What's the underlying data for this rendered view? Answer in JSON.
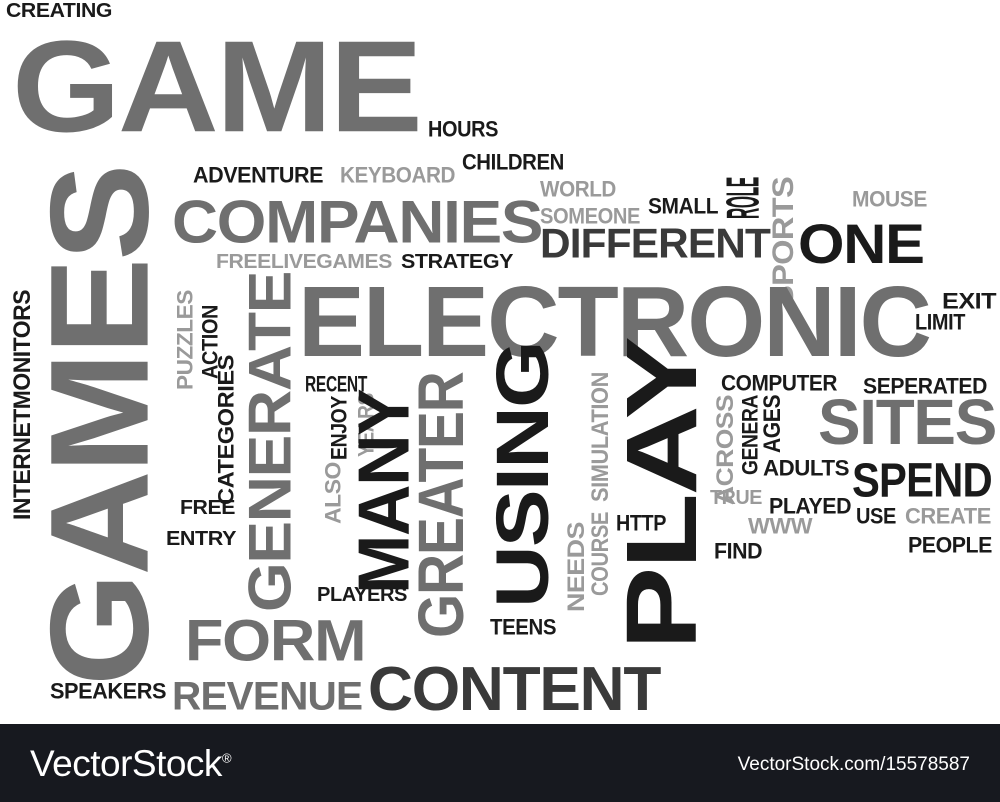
{
  "colors": {
    "black": "#1a1a1a",
    "dark": "#3a3a3a",
    "mid": "#6f6f6f",
    "light": "#9a9a9a",
    "footer": "#17191f"
  },
  "footer": {
    "brand": "VectorStock",
    "trademark": "®",
    "credit": "VectorStock.com/15578587"
  },
  "words": [
    {
      "t": "CREATING",
      "c": "black"
    },
    {
      "t": "GAME",
      "c": "mid"
    },
    {
      "t": "HOURS",
      "c": "black"
    },
    {
      "t": "CHILDREN",
      "c": "black"
    },
    {
      "t": "ADVENTURE",
      "c": "black"
    },
    {
      "t": "KEYBOARD",
      "c": "light"
    },
    {
      "t": "WORLD",
      "c": "light"
    },
    {
      "t": "SOMEONE",
      "c": "light"
    },
    {
      "t": "SMALL",
      "c": "black"
    },
    {
      "t": "ROLE",
      "c": "black"
    },
    {
      "t": "MOUSE",
      "c": "light"
    },
    {
      "t": "SPORTS",
      "c": "light"
    },
    {
      "t": "GAMES",
      "c": "mid"
    },
    {
      "t": "COMPANIES",
      "c": "mid"
    },
    {
      "t": "DIFFERENT",
      "c": "dark"
    },
    {
      "t": "ONE",
      "c": "black"
    },
    {
      "t": "FREELIVEGAMES",
      "c": "light"
    },
    {
      "t": "STRATEGY",
      "c": "black"
    },
    {
      "t": "ELECTRONIC",
      "c": "mid"
    },
    {
      "t": "EXIT",
      "c": "black"
    },
    {
      "t": "LIMIT",
      "c": "black"
    },
    {
      "t": "INTERNETMONITORS",
      "c": "black"
    },
    {
      "t": "PUZZLES",
      "c": "light"
    },
    {
      "t": "ACTION",
      "c": "black"
    },
    {
      "t": "CATEGORIES",
      "c": "black"
    },
    {
      "t": "GENERATE",
      "c": "mid"
    },
    {
      "t": "RECENT",
      "c": "black"
    },
    {
      "t": "ENJOY",
      "c": "black"
    },
    {
      "t": "YEARS",
      "c": "light"
    },
    {
      "t": "ALSO",
      "c": "light"
    },
    {
      "t": "MANY",
      "c": "black"
    },
    {
      "t": "GREATER",
      "c": "mid"
    },
    {
      "t": "USING",
      "c": "black"
    },
    {
      "t": "PLAY",
      "c": "black"
    },
    {
      "t": "SIMULATION",
      "c": "light"
    },
    {
      "t": "NEEDS",
      "c": "light"
    },
    {
      "t": "COURSE",
      "c": "light"
    },
    {
      "t": "COMPUTER",
      "c": "black"
    },
    {
      "t": "SEPERATED",
      "c": "black"
    },
    {
      "t": "ACROSS",
      "c": "light"
    },
    {
      "t": "GENERA",
      "c": "black"
    },
    {
      "t": "AGES",
      "c": "black"
    },
    {
      "t": "SITES",
      "c": "mid"
    },
    {
      "t": "ADULTS",
      "c": "black"
    },
    {
      "t": "SPEND",
      "c": "black"
    },
    {
      "t": "TRUE",
      "c": "light"
    },
    {
      "t": "PLAYED",
      "c": "black"
    },
    {
      "t": "USE",
      "c": "black"
    },
    {
      "t": "CREATE",
      "c": "light"
    },
    {
      "t": "FREE",
      "c": "black"
    },
    {
      "t": "ENTRY",
      "c": "black"
    },
    {
      "t": "HTTP",
      "c": "black"
    },
    {
      "t": "WWW",
      "c": "light"
    },
    {
      "t": "FIND",
      "c": "black"
    },
    {
      "t": "PEOPLE",
      "c": "black"
    },
    {
      "t": "PLAYERS",
      "c": "black"
    },
    {
      "t": "TEENS",
      "c": "black"
    },
    {
      "t": "FORM",
      "c": "mid"
    },
    {
      "t": "SPEAKERS",
      "c": "black"
    },
    {
      "t": "REVENUE",
      "c": "mid"
    },
    {
      "t": "CONTENT",
      "c": "dark"
    }
  ]
}
